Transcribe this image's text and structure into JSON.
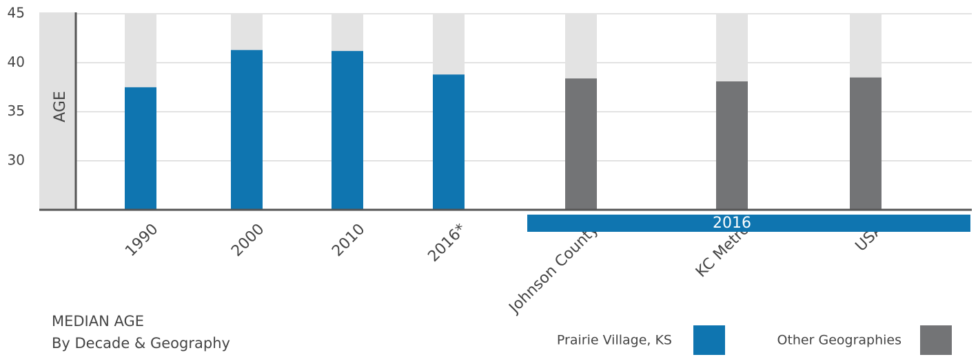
{
  "chart_data": {
    "type": "bar",
    "title": "MEDIAN AGE",
    "subtitle": "By Decade & Geography",
    "y_label": "AGE",
    "categories": [
      "1990",
      "2000",
      "2010",
      "2016*",
      "Johnson County",
      "KC Metro",
      "USA"
    ],
    "series": [
      {
        "name": "Prairie Village, KS",
        "color": "#0f75b0",
        "values": [
          37.5,
          41.3,
          41.2,
          38.8,
          null,
          null,
          null
        ]
      },
      {
        "name": "Other Geographies",
        "color": "#737476",
        "values": [
          null,
          null,
          null,
          null,
          38.4,
          38.1,
          38.5
        ]
      }
    ],
    "annotation": "2016",
    "ylim": [
      25,
      45
    ],
    "yticks": [
      30,
      35,
      40,
      45
    ],
    "grid": true
  }
}
